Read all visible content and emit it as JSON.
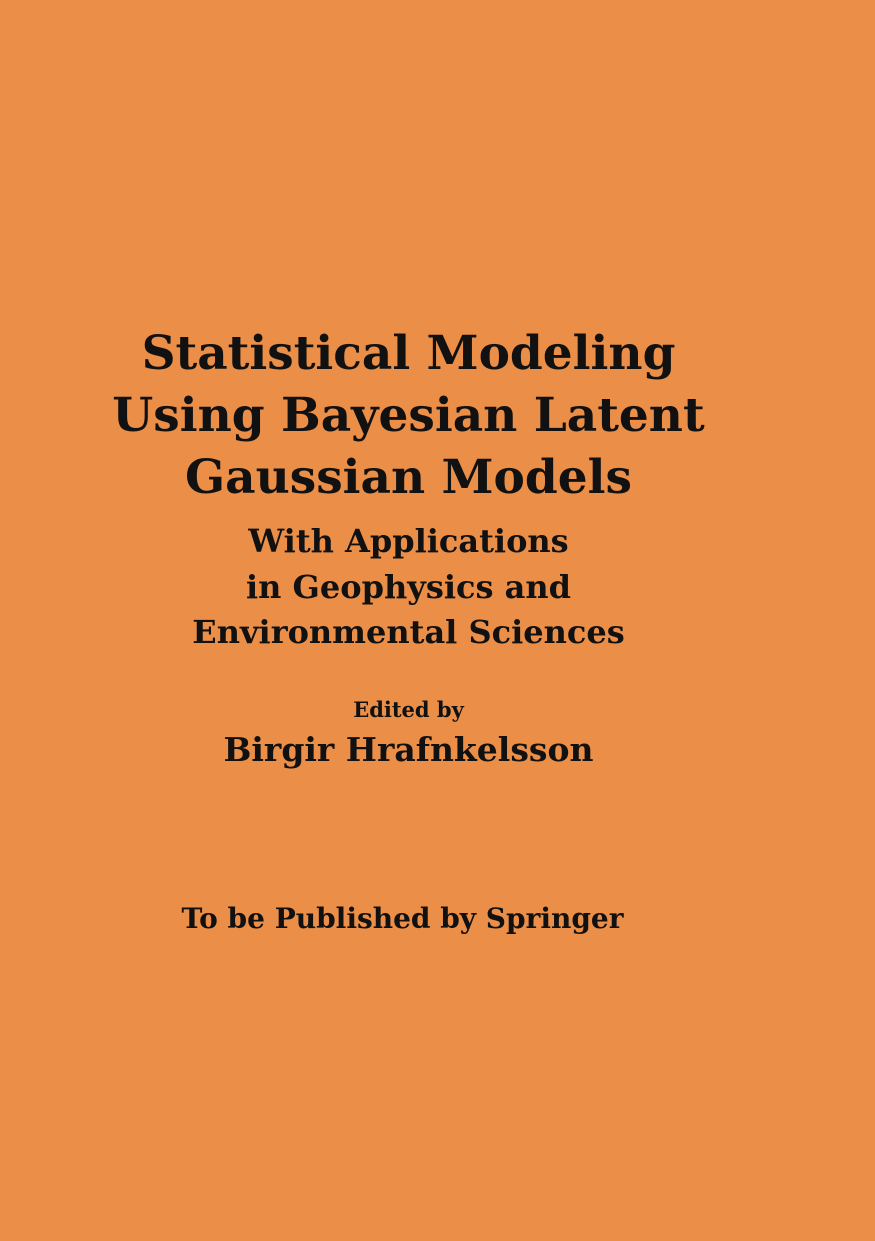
{
  "cover": {
    "title_lines": [
      "Statistical Modeling",
      "Using Bayesian Latent",
      "Gaussian Models"
    ],
    "subtitle_lines": [
      "With Applications",
      "in Geophysics and",
      "Environmental Sciences"
    ],
    "edited_by_label": "Edited by",
    "editor_name": "Birgir Hrafnkelsson",
    "publisher_note": "To be Published by Springer",
    "background_color": "#EA8E48",
    "text_color": "#111111"
  }
}
